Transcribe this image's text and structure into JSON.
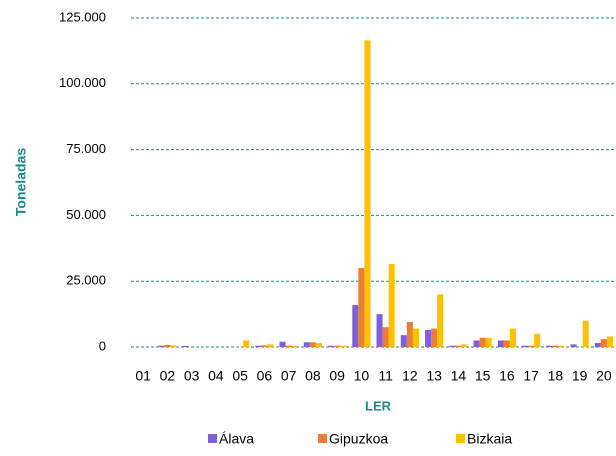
{
  "chart_data": {
    "type": "bar",
    "x_label": "LER",
    "y_label": "Toneladas",
    "categories": [
      "01",
      "02",
      "03",
      "04",
      "05",
      "06",
      "07",
      "08",
      "09",
      "10",
      "11",
      "12",
      "13",
      "14",
      "15",
      "16",
      "17",
      "18",
      "19",
      "20"
    ],
    "series": [
      {
        "name": "Álava",
        "color": "#7f5fdc",
        "values": [
          0,
          500,
          400,
          0,
          0,
          500,
          2000,
          1800,
          500,
          16000,
          12500,
          4500,
          6500,
          500,
          2500,
          2500,
          500,
          500,
          1000,
          1500
        ]
      },
      {
        "name": "Gipuzkoa",
        "color": "#ed7d31",
        "values": [
          0,
          800,
          0,
          0,
          0,
          600,
          500,
          1800,
          500,
          30000,
          7500,
          9500,
          7000,
          500,
          3500,
          2500,
          500,
          500,
          0,
          3000
        ]
      },
      {
        "name": "Bizkaia",
        "color": "#ffc000",
        "values": [
          0,
          600,
          0,
          0,
          2500,
          1000,
          500,
          1500,
          500,
          116500,
          31500,
          7000,
          20000,
          1000,
          3500,
          7000,
          5000,
          500,
          10000,
          4000
        ]
      }
    ],
    "ylim": [
      0,
      125000
    ],
    "yticks": [
      0,
      {
        "value": 25000,
        "label": "25.000"
      },
      {
        "value": 50000,
        "label": "50.000"
      },
      {
        "value": 75000,
        "label": "75.000"
      },
      {
        "value": 100000,
        "label": "100.000"
      },
      {
        "value": 125000,
        "label": "125.000"
      }
    ],
    "grid": true,
    "legend": "bottom"
  }
}
